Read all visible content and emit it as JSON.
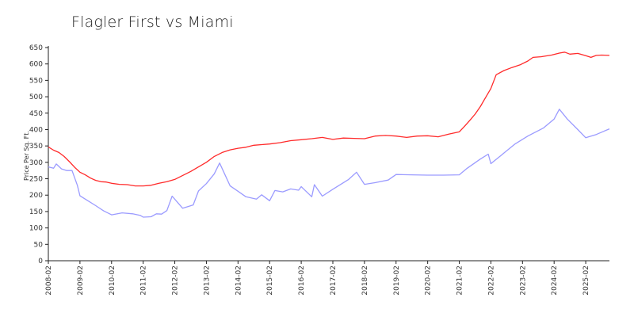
{
  "chart_data": {
    "type": "line",
    "title": "Flagler First vs Miami",
    "xlabel": "",
    "ylabel": "Price Per Sq. Ft.",
    "ylim": [
      0,
      650
    ],
    "y_ticks": [
      0,
      50,
      100,
      150,
      200,
      250,
      300,
      350,
      400,
      450,
      500,
      550,
      600,
      650
    ],
    "x_tick_labels": [
      "2008-02",
      "2009-02",
      "2010-02",
      "2011-02",
      "2012-02",
      "2013-02",
      "2014-02",
      "2015-02",
      "2016-02",
      "2017-02",
      "2018-02",
      "2019-02",
      "2020-02",
      "2021-02",
      "2022-02",
      "2023-02",
      "2024-02",
      "2025-02"
    ],
    "x_range": [
      "2008-02",
      "2025-11"
    ],
    "grid": false,
    "legend": "none",
    "series": [
      {
        "color": "#ff2a2a",
        "points": [
          [
            "2008-02",
            347
          ],
          [
            "2008-04",
            337
          ],
          [
            "2008-06",
            330
          ],
          [
            "2008-08",
            318
          ],
          [
            "2008-10",
            302
          ],
          [
            "2008-12",
            285
          ],
          [
            "2009-02",
            270
          ],
          [
            "2009-04",
            262
          ],
          [
            "2009-06",
            252
          ],
          [
            "2009-08",
            245
          ],
          [
            "2009-10",
            241
          ],
          [
            "2009-12",
            240
          ],
          [
            "2010-02",
            236
          ],
          [
            "2010-05",
            233
          ],
          [
            "2010-08",
            232
          ],
          [
            "2010-11",
            228
          ],
          [
            "2011-02",
            228
          ],
          [
            "2011-05",
            230
          ],
          [
            "2011-08",
            236
          ],
          [
            "2011-11",
            241
          ],
          [
            "2012-02",
            248
          ],
          [
            "2012-05",
            260
          ],
          [
            "2012-08",
            272
          ],
          [
            "2012-11",
            286
          ],
          [
            "2013-02",
            300
          ],
          [
            "2013-05",
            318
          ],
          [
            "2013-08",
            330
          ],
          [
            "2013-11",
            338
          ],
          [
            "2014-02",
            343
          ],
          [
            "2014-05",
            346
          ],
          [
            "2014-08",
            352
          ],
          [
            "2014-11",
            354
          ],
          [
            "2015-02",
            356
          ],
          [
            "2015-06",
            360
          ],
          [
            "2015-10",
            366
          ],
          [
            "2016-02",
            369
          ],
          [
            "2016-06",
            372
          ],
          [
            "2016-10",
            376
          ],
          [
            "2017-02",
            370
          ],
          [
            "2017-06",
            374
          ],
          [
            "2017-10",
            373
          ],
          [
            "2018-02",
            372
          ],
          [
            "2018-06",
            380
          ],
          [
            "2018-10",
            382
          ],
          [
            "2019-02",
            380
          ],
          [
            "2019-06",
            376
          ],
          [
            "2019-10",
            380
          ],
          [
            "2020-02",
            381
          ],
          [
            "2020-06",
            378
          ],
          [
            "2020-10",
            386
          ],
          [
            "2021-02",
            393
          ],
          [
            "2021-04",
            410
          ],
          [
            "2021-06",
            428
          ],
          [
            "2021-08",
            447
          ],
          [
            "2021-10",
            470
          ],
          [
            "2021-12",
            498
          ],
          [
            "2022-02",
            525
          ],
          [
            "2022-04",
            567
          ],
          [
            "2022-07",
            580
          ],
          [
            "2022-10",
            589
          ],
          [
            "2023-01",
            597
          ],
          [
            "2023-04",
            609
          ],
          [
            "2023-06",
            620
          ],
          [
            "2023-09",
            622
          ],
          [
            "2024-01",
            627
          ],
          [
            "2024-04",
            633
          ],
          [
            "2024-06",
            636
          ],
          [
            "2024-08",
            630
          ],
          [
            "2024-11",
            632
          ],
          [
            "2025-02",
            625
          ],
          [
            "2025-04",
            620
          ],
          [
            "2025-06",
            626
          ],
          [
            "2025-08",
            627
          ],
          [
            "2025-11",
            626
          ]
        ]
      },
      {
        "color": "#9b9bff",
        "points": [
          [
            "2008-02",
            286
          ],
          [
            "2008-04",
            282
          ],
          [
            "2008-05",
            295
          ],
          [
            "2008-07",
            280
          ],
          [
            "2008-09",
            275
          ],
          [
            "2008-11",
            275
          ],
          [
            "2009-01",
            230
          ],
          [
            "2009-02",
            198
          ],
          [
            "2009-05",
            183
          ],
          [
            "2009-08",
            168
          ],
          [
            "2009-11",
            152
          ],
          [
            "2010-02",
            140
          ],
          [
            "2010-06",
            146
          ],
          [
            "2010-10",
            143
          ],
          [
            "2011-01",
            138
          ],
          [
            "2011-02",
            133
          ],
          [
            "2011-05",
            134
          ],
          [
            "2011-07",
            143
          ],
          [
            "2011-09",
            142
          ],
          [
            "2011-11",
            153
          ],
          [
            "2012-01",
            197
          ],
          [
            "2012-05",
            160
          ],
          [
            "2012-09",
            170
          ],
          [
            "2012-11",
            213
          ],
          [
            "2013-02",
            235
          ],
          [
            "2013-05",
            265
          ],
          [
            "2013-07",
            298
          ],
          [
            "2013-11",
            228
          ],
          [
            "2014-02",
            212
          ],
          [
            "2014-05",
            195
          ],
          [
            "2014-09",
            188
          ],
          [
            "2014-11",
            201
          ],
          [
            "2015-02",
            183
          ],
          [
            "2015-04",
            214
          ],
          [
            "2015-07",
            210
          ],
          [
            "2015-10",
            219
          ],
          [
            "2016-01",
            215
          ],
          [
            "2016-02",
            226
          ],
          [
            "2016-06",
            195
          ],
          [
            "2016-07",
            232
          ],
          [
            "2016-10",
            197
          ],
          [
            "2017-02",
            218
          ],
          [
            "2017-08",
            248
          ],
          [
            "2017-11",
            270
          ],
          [
            "2018-02",
            233
          ],
          [
            "2018-06",
            238
          ],
          [
            "2018-11",
            246
          ],
          [
            "2019-02",
            263
          ],
          [
            "2019-08",
            262
          ],
          [
            "2020-02",
            261
          ],
          [
            "2020-08",
            261
          ],
          [
            "2021-02",
            262
          ],
          [
            "2021-05",
            282
          ],
          [
            "2021-10",
            310
          ],
          [
            "2022-01",
            325
          ],
          [
            "2022-02",
            296
          ],
          [
            "2022-06",
            322
          ],
          [
            "2022-11",
            355
          ],
          [
            "2023-04",
            380
          ],
          [
            "2023-10",
            405
          ],
          [
            "2024-02",
            432
          ],
          [
            "2024-04",
            462
          ],
          [
            "2024-07",
            432
          ],
          [
            "2024-11",
            400
          ],
          [
            "2025-02",
            375
          ],
          [
            "2025-06",
            385
          ],
          [
            "2025-11",
            402
          ]
        ]
      }
    ]
  }
}
